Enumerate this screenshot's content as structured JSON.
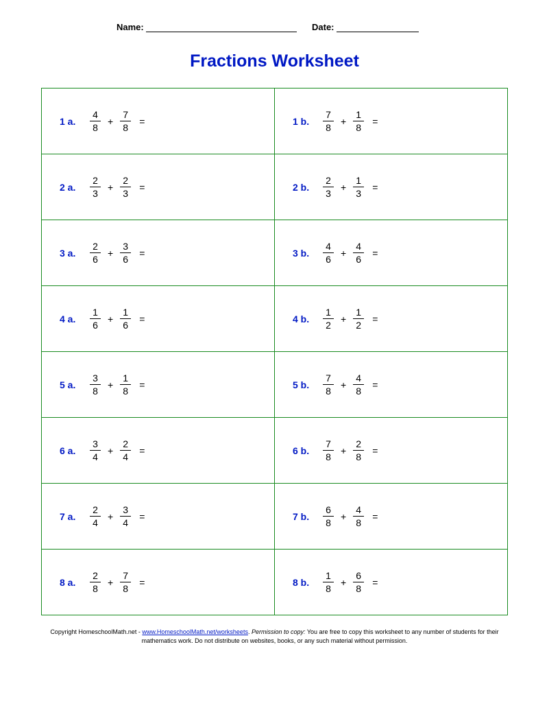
{
  "colors": {
    "accent_blue": "#0018c4",
    "grid_green": "#178a1e",
    "link_blue": "#0018c4"
  },
  "header": {
    "name_label": "Name:",
    "date_label": "Date:"
  },
  "title": "Fractions Worksheet",
  "operator": "+",
  "equals": "=",
  "problems": [
    [
      {
        "label": "1 a.",
        "n1": "4",
        "d1": "8",
        "n2": "7",
        "d2": "8"
      },
      {
        "label": "1 b.",
        "n1": "7",
        "d1": "8",
        "n2": "1",
        "d2": "8"
      }
    ],
    [
      {
        "label": "2 a.",
        "n1": "2",
        "d1": "3",
        "n2": "2",
        "d2": "3"
      },
      {
        "label": "2 b.",
        "n1": "2",
        "d1": "3",
        "n2": "1",
        "d2": "3"
      }
    ],
    [
      {
        "label": "3 a.",
        "n1": "2",
        "d1": "6",
        "n2": "3",
        "d2": "6"
      },
      {
        "label": "3 b.",
        "n1": "4",
        "d1": "6",
        "n2": "4",
        "d2": "6"
      }
    ],
    [
      {
        "label": "4 a.",
        "n1": "1",
        "d1": "6",
        "n2": "1",
        "d2": "6"
      },
      {
        "label": "4 b.",
        "n1": "1",
        "d1": "2",
        "n2": "1",
        "d2": "2"
      }
    ],
    [
      {
        "label": "5 a.",
        "n1": "3",
        "d1": "8",
        "n2": "1",
        "d2": "8"
      },
      {
        "label": "5 b.",
        "n1": "7",
        "d1": "8",
        "n2": "4",
        "d2": "8"
      }
    ],
    [
      {
        "label": "6 a.",
        "n1": "3",
        "d1": "4",
        "n2": "2",
        "d2": "4"
      },
      {
        "label": "6 b.",
        "n1": "7",
        "d1": "8",
        "n2": "2",
        "d2": "8"
      }
    ],
    [
      {
        "label": "7 a.",
        "n1": "2",
        "d1": "4",
        "n2": "3",
        "d2": "4"
      },
      {
        "label": "7 b.",
        "n1": "6",
        "d1": "8",
        "n2": "4",
        "d2": "8"
      }
    ],
    [
      {
        "label": "8 a.",
        "n1": "2",
        "d1": "8",
        "n2": "7",
        "d2": "8"
      },
      {
        "label": "8 b.",
        "n1": "1",
        "d1": "8",
        "n2": "6",
        "d2": "8"
      }
    ]
  ],
  "footer": {
    "copyright_prefix": "Copyright HomeschoolMath.net - ",
    "link_text": "www.HomeschoolMath.net/worksheets",
    "copyright_suffix": ".  ",
    "permission_label": "Permission to copy:",
    "permission_text": " You are free to copy this worksheet to any number of students for their mathematics work. Do not distribute on websites, books, or any such material without permission."
  }
}
